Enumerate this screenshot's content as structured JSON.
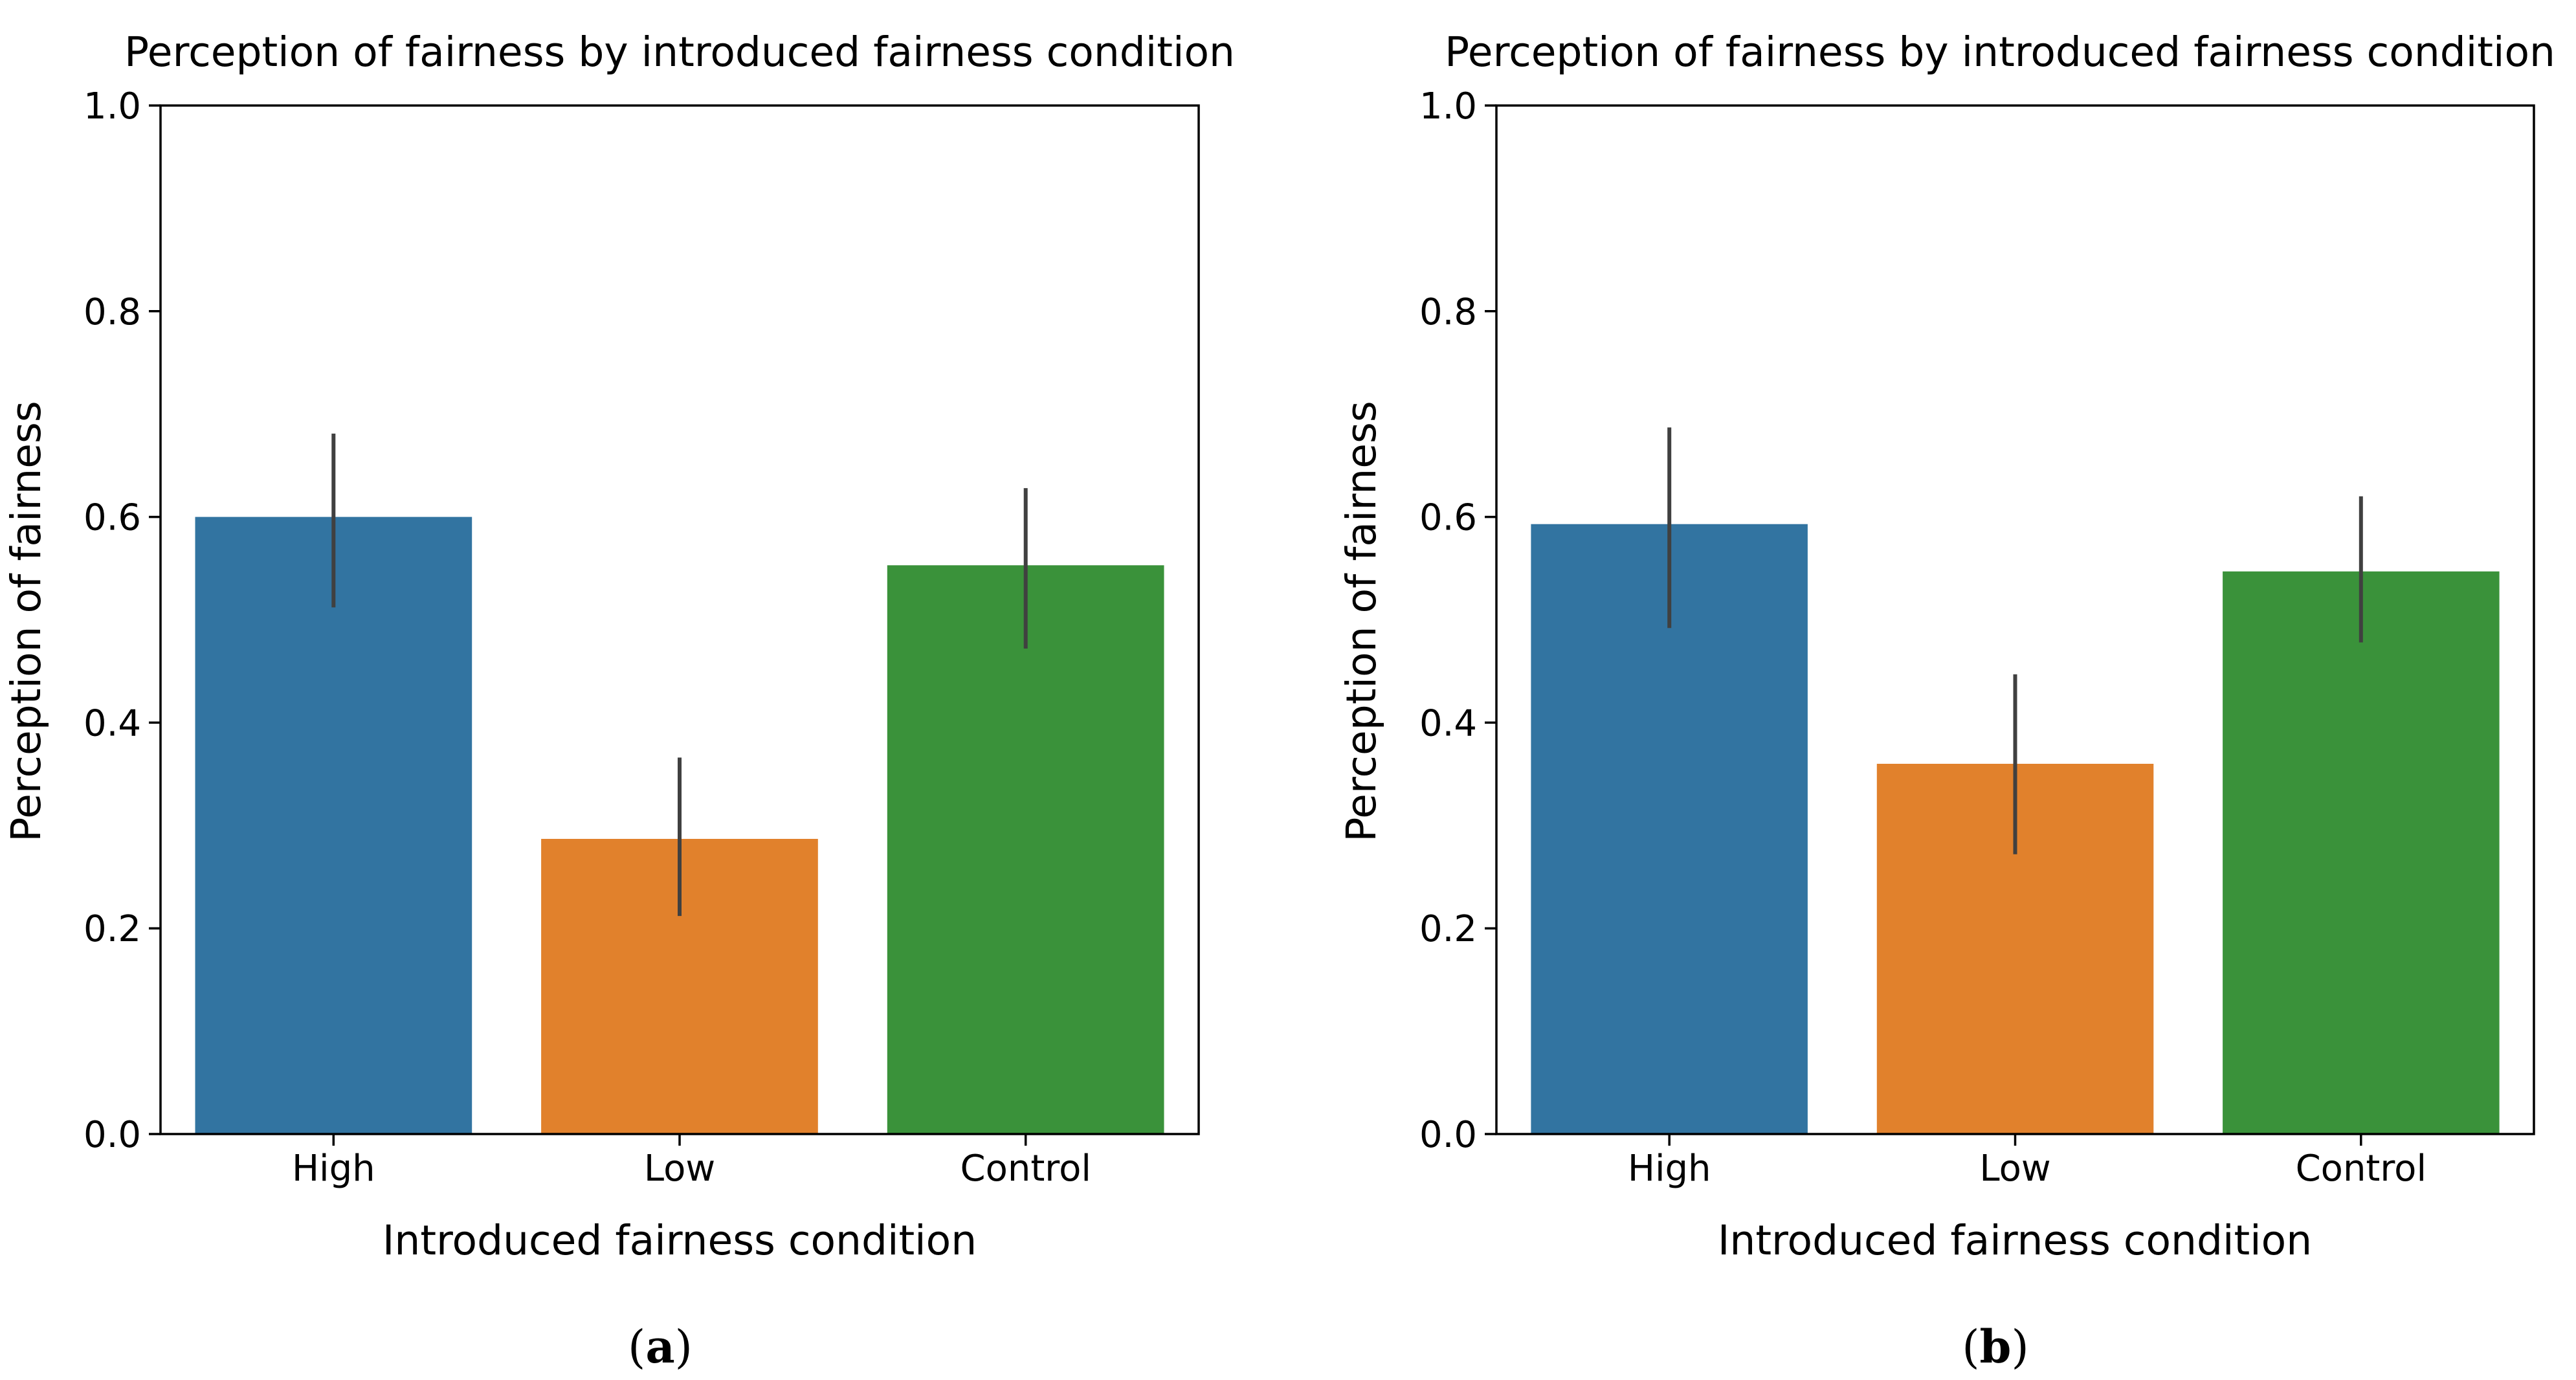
{
  "figure": {
    "panels": [
      {
        "label_open": "(",
        "label_letter": "a",
        "label_close": ")"
      },
      {
        "label_open": "(",
        "label_letter": "b",
        "label_close": ")"
      }
    ]
  },
  "colors": {
    "High": "#3274a1",
    "Low": "#e1812c",
    "Control": "#3a923a",
    "error_bar": "#404040",
    "axis": "#000000"
  },
  "chart_data": [
    {
      "type": "bar",
      "title": "Perception of fairness by introduced fairness condition",
      "xlabel": "Introduced fairness condition",
      "ylabel": "Perception of fairness",
      "categories": [
        "High",
        "Low",
        "Control"
      ],
      "values": [
        0.6,
        0.287,
        0.553
      ],
      "error_low": [
        0.512,
        0.212,
        0.472
      ],
      "error_high": [
        0.681,
        0.366,
        0.628
      ],
      "ylim": [
        0.0,
        1.0
      ],
      "yticks": [
        "0.0",
        "0.2",
        "0.4",
        "0.6",
        "0.8",
        "1.0"
      ],
      "grid": false,
      "legend": "none"
    },
    {
      "type": "bar",
      "title": "Perception of fairness by introduced fairness condition",
      "xlabel": "Introduced fairness condition",
      "ylabel": "Perception of fairness",
      "categories": [
        "High",
        "Low",
        "Control"
      ],
      "values": [
        0.593,
        0.36,
        0.547
      ],
      "error_low": [
        0.492,
        0.272,
        0.478
      ],
      "error_high": [
        0.687,
        0.447,
        0.62
      ],
      "ylim": [
        0.0,
        1.0
      ],
      "yticks": [
        "0.0",
        "0.2",
        "0.4",
        "0.6",
        "0.8",
        "1.0"
      ],
      "grid": false,
      "legend": "none"
    }
  ]
}
